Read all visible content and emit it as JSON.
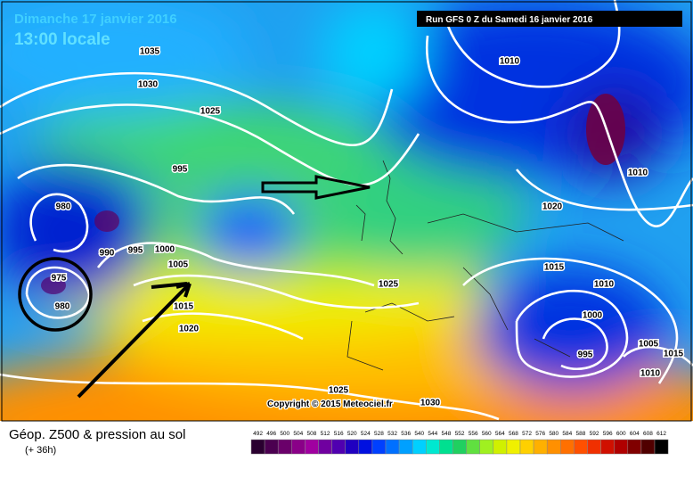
{
  "header": {
    "date": "Dimanche 17 janvier 2016",
    "time": "13:00 locale",
    "run": "Run GFS 0 Z du Samedi 16 janvier 2016"
  },
  "copyright": "Copyright © 2015 Meteociel.fr",
  "isobars": [
    1035,
    1030,
    1025,
    995,
    980,
    990,
    995,
    1000,
    1005,
    975,
    980,
    1015,
    1020,
    1025,
    1010,
    1010,
    1020,
    1015,
    1010,
    1000,
    995,
    1005,
    1015,
    1010,
    1025,
    1030
  ],
  "legend": {
    "title": "Géop. Z500 & pression au sol",
    "lead": "(+ 36h)",
    "scale": [
      492,
      496,
      500,
      504,
      508,
      512,
      516,
      520,
      524,
      528,
      532,
      536,
      540,
      544,
      548,
      552,
      556,
      560,
      564,
      568,
      572,
      576,
      580,
      584,
      588,
      592,
      596,
      600,
      604,
      608,
      612
    ]
  }
}
